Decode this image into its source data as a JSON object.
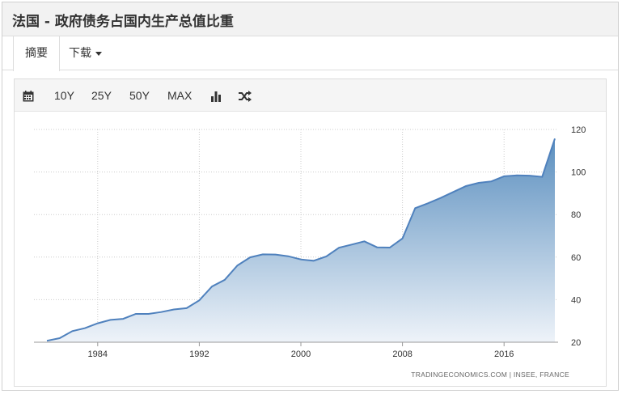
{
  "header": {
    "title": "法国 - 政府债务占国内生产总值比重"
  },
  "tabs": [
    {
      "label": "摘要"
    },
    {
      "label": "下载"
    }
  ],
  "toolbar": {
    "calendar_icon": "calendar-icon",
    "ranges": [
      "10Y",
      "25Y",
      "50Y",
      "MAX"
    ],
    "bar_chart_icon": "bar-chart-icon",
    "shuffle_icon": "shuffle-icon"
  },
  "chart_data": {
    "type": "area",
    "x": [
      1980,
      1981,
      1982,
      1983,
      1984,
      1985,
      1986,
      1987,
      1988,
      1989,
      1990,
      1991,
      1992,
      1993,
      1994,
      1995,
      1996,
      1997,
      1998,
      1999,
      2000,
      2001,
      2002,
      2003,
      2004,
      2005,
      2006,
      2007,
      2008,
      2009,
      2010,
      2011,
      2012,
      2013,
      2014,
      2015,
      2016,
      2017,
      2018,
      2019,
      2020
    ],
    "series": [
      {
        "values": [
          20.7,
          21.9,
          25.2,
          26.6,
          28.9,
          30.5,
          31.0,
          33.3,
          33.3,
          34.2,
          35.4,
          36.0,
          39.7,
          46.2,
          49.3,
          56.1,
          59.9,
          61.3,
          61.2,
          60.4,
          58.9,
          58.3,
          60.3,
          64.4,
          65.9,
          67.4,
          64.6,
          64.5,
          68.8,
          83.0,
          85.3,
          87.8,
          90.6,
          93.4,
          94.9,
          95.6,
          98.0,
          98.4,
          98.3,
          97.7,
          115.7
        ]
      }
    ],
    "xticks": [
      "1984",
      "1992",
      "2000",
      "2008",
      "2016"
    ],
    "yticks": [
      "20",
      "40",
      "60",
      "80",
      "100",
      "120"
    ],
    "ylim": [
      20,
      120
    ],
    "grid": true,
    "source": "TRADINGECONOMICS.COM | INSEE, FRANCE",
    "line_color": "#4f81bd",
    "fill_top_color": "#5b8fbf",
    "fill_bottom_color": "#eef3f9"
  }
}
